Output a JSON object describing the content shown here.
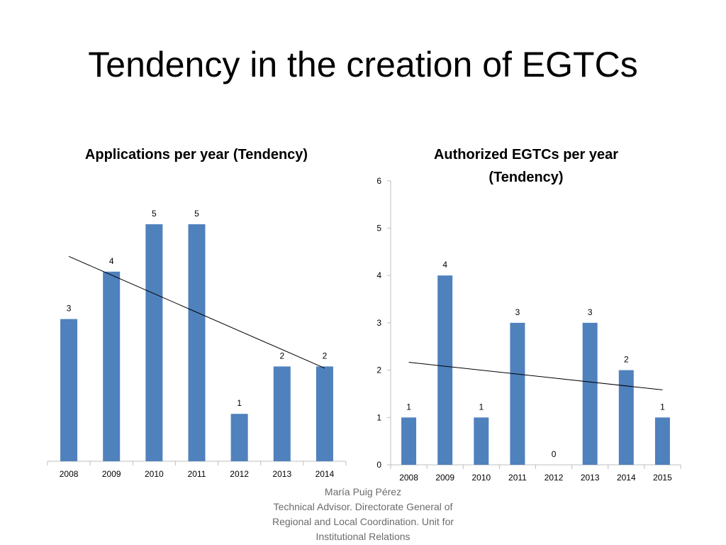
{
  "slide": {
    "title": "Tendency in the creation of EGTCs"
  },
  "footer": {
    "lines": [
      "María Puig Pérez",
      "Technical Advisor. Directorate General of",
      "Regional and Local Coordination. Unit for",
      "Institutional Relations"
    ]
  },
  "colors": {
    "bar": "#4f81bd",
    "trendline": "#000000",
    "axis": "#bfbfbf"
  },
  "chart_data": [
    {
      "type": "bar",
      "title": "Applications per year (Tendency)",
      "categories": [
        "2008",
        "2009",
        "2010",
        "2011",
        "2012",
        "2013",
        "2014"
      ],
      "values": [
        3,
        4,
        5,
        5,
        1,
        2,
        2
      ],
      "data_labels": [
        "3",
        "4",
        "5",
        "5",
        "1",
        "2",
        "2"
      ],
      "ylim": [
        0,
        5
      ],
      "y_axis_visible": false,
      "trendline": "linear",
      "grid": false,
      "legend": "none"
    },
    {
      "type": "bar",
      "title": "Authorized EGTCs per year (Tendency)",
      "title_lines": [
        "Authorized EGTCs per year",
        "(Tendency)"
      ],
      "categories": [
        "2008",
        "2009",
        "2010",
        "2011",
        "2012",
        "2013",
        "2014",
        "2015"
      ],
      "values": [
        1,
        4,
        1,
        3,
        0,
        3,
        2,
        1
      ],
      "data_labels": [
        "1",
        "4",
        "1",
        "3",
        "0",
        "3",
        "2",
        "1"
      ],
      "ylim": [
        0,
        6
      ],
      "yticks": [
        "0",
        "1",
        "2",
        "3",
        "4",
        "5",
        "6"
      ],
      "y_axis_visible": true,
      "trendline": "linear",
      "grid": false,
      "legend": "none"
    }
  ]
}
